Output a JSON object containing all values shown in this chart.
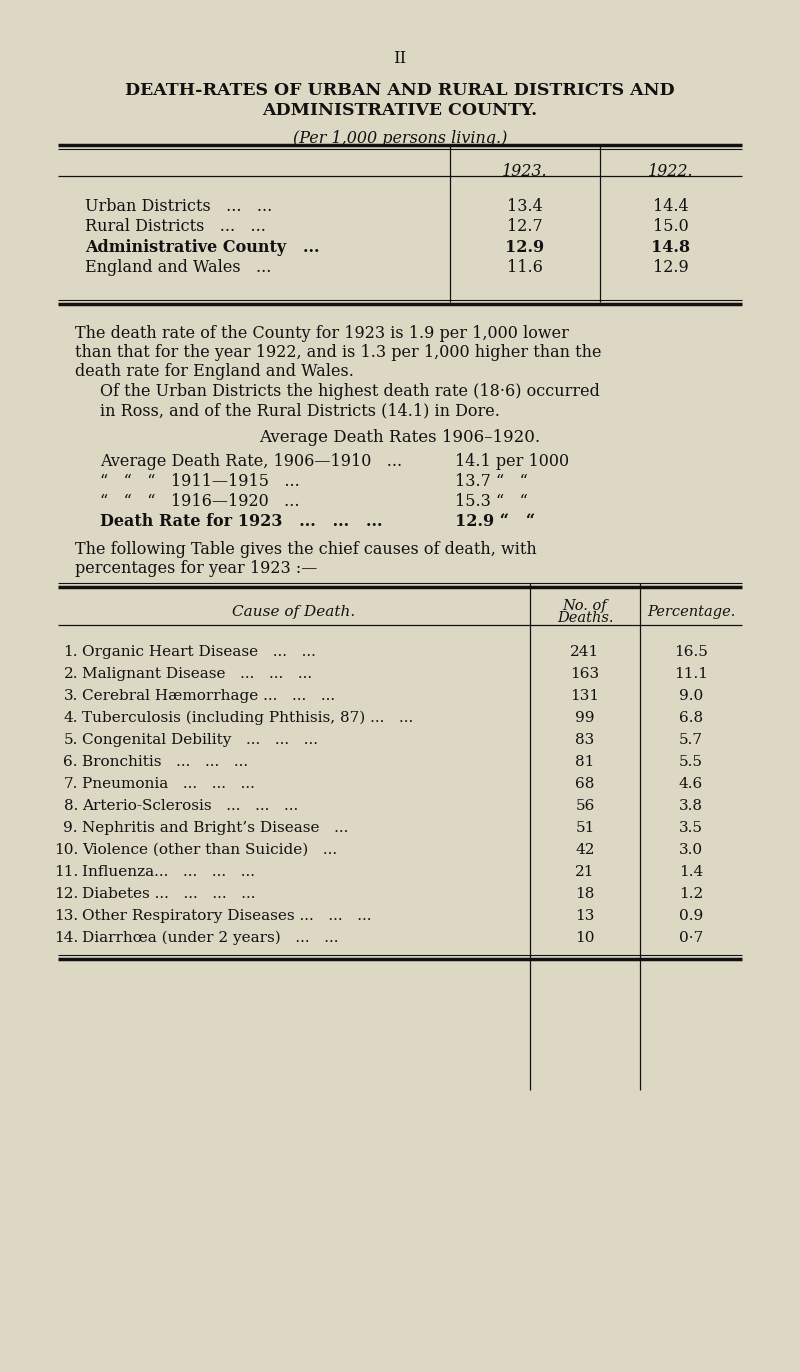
{
  "page_number": "II",
  "title_line1": "DEATH-RATES OF URBAN AND RURAL DISTRICTS AND",
  "title_line2": "ADMINISTRATIVE COUNTY.",
  "subtitle": "(Per 1,000 persons living.)",
  "bg_color": "#ddd8c4",
  "text_color": "#111111",
  "col1923": "1923.",
  "col1922": "1922.",
  "t1_rows": [
    {
      "label": "Urban Districts",
      "dots": "   ...   ...",
      "bold": false,
      "v1923": "13.4",
      "v1922": "14.4"
    },
    {
      "label": "Rural Districts",
      "dots": "   ...   ...",
      "bold": false,
      "v1923": "12.7",
      "v1922": "15.0"
    },
    {
      "label": "Administrative County",
      "dots": "   ...",
      "bold": true,
      "v1923": "12.9",
      "v1922": "14.8"
    },
    {
      "label": "England and Wales",
      "dots": "   ...",
      "bold": false,
      "v1923": "11.6",
      "v1922": "12.9"
    }
  ],
  "para1_lines": [
    "The death rate of the County for 1923 is 1.9 per 1,000 lower",
    "than that for the year 1922, and is 1.3 per 1,000 higher than the",
    "death rate for England and Wales."
  ],
  "para2_lines": [
    "Of the Urban Districts the highest death rate (18·6) occurred",
    "in Ross, and of the Rural Districts (14.1) in Dore."
  ],
  "avg_section_title": "Average Death Rates 1906–1920.",
  "avg_rows": [
    {
      "left": "Average Death Rate, 1906—1910   ...",
      "right": "14.1 per 1000",
      "bold": false
    },
    {
      "left": "“   “   “   1911—1915   ...",
      "right": "13.7 “   “",
      "bold": false
    },
    {
      "left": "“   “   “   1916—1920   ...",
      "right": "15.3 “   “",
      "bold": false
    },
    {
      "left": "Death Rate for 1923   ...   ...   ...",
      "right": "12.9 “   “",
      "bold": true
    }
  ],
  "para3_lines": [
    "The following Table gives the chief causes of death, with",
    "percentages for year 1923 :—"
  ],
  "t2_header_cause": "Cause of Death.",
  "t2_header_deaths_line1": "No. of",
  "t2_header_deaths_line2": "Deaths.",
  "t2_header_pct": "Percentage.",
  "t2_causes": [
    "Organic Heart Disease",
    "Malignant Disease",
    "Cerebral Hæmorrhage ...",
    "Tuberculosis (including Phthisis, 87) ...",
    "Congenital Debility",
    "Bronchitis",
    "Pneumonia",
    "Arterio-Sclerosis",
    "Nephritis and Bright’s Disease",
    "Violence (other than Suicide)",
    "Influenza...",
    "Diabetes ...",
    "Other Respiratory Diseases ...",
    "Diarrhœa (under 2 years)"
  ],
  "t2_cause_dots": [
    "   ...   ...",
    "   ...   ...   ...",
    "   ...   ...",
    "   ...",
    "   ...   ...   ...",
    "   ...   ...   ...",
    "   ...   ...   ...",
    "   ...   ...   ...",
    "   ...",
    "   ...",
    "   ...   ...   ...",
    "   ...   ...   ...",
    "   ...   ...",
    "   ...   ..."
  ],
  "t2_deaths": [
    "241",
    "163",
    "131",
    "99",
    "83",
    "81",
    "68",
    "56",
    "51",
    "42",
    "21",
    "18",
    "13",
    "10"
  ],
  "t2_pcts": [
    "16.5",
    "11.1",
    "9.0",
    "6.8",
    "5.7",
    "5.5",
    "4.6",
    "3.8",
    "3.5",
    "3.0",
    "1.4",
    "1.2",
    "0.9",
    "0·7"
  ],
  "t2_nums": [
    "1.",
    "2.",
    "3.",
    "4.",
    "5.",
    "6.",
    "7.",
    "8.",
    "9.",
    "10.",
    "11.",
    "12.",
    "13.",
    "14."
  ]
}
